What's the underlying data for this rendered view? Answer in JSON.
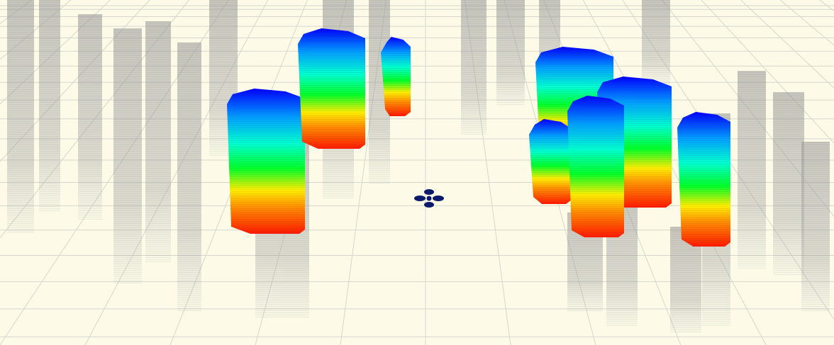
{
  "viewer": {
    "view": "3d-occupancy-map",
    "background_color": "#fdfbe8",
    "grid_color": "#d6d6cc",
    "shadow_color": "#9a9a9a",
    "height_colormap": [
      "#ff1a00",
      "#ff8c00",
      "#ffee00",
      "#00ff2a",
      "#00ffd0",
      "#00a0ff",
      "#0000ff"
    ],
    "robot": {
      "icon": "quadrotor-drone-icon",
      "color": "#0d1a6b"
    },
    "occupied_voxel_clusters": 10,
    "ghost_voxel_columns": 22
  }
}
